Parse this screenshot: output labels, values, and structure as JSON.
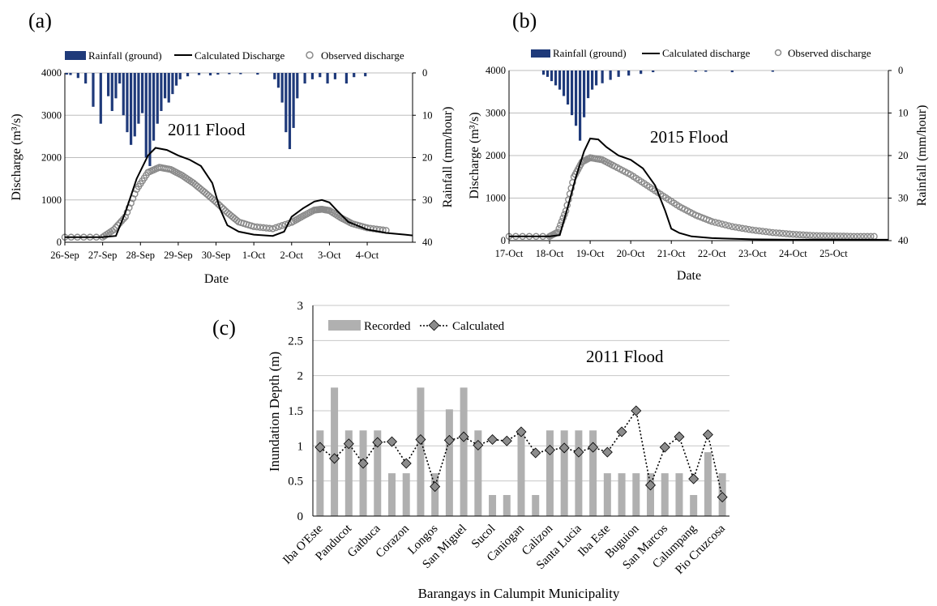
{
  "chart_data": [
    {
      "panel": "(a)",
      "type": "line",
      "annotation": "2011 Flood",
      "xlabel": "Date",
      "ylabel": "Discharge (m³/s)",
      "y2label": "Rainfall (mm/hour)",
      "categories": [
        "26-Sep",
        "27-Sep",
        "28-Sep",
        "29-Sep",
        "30-Sep",
        "1-Oct",
        "2-Oct",
        "3-Oct",
        "4-Oct"
      ],
      "xlim": [
        0,
        9.2
      ],
      "ylim": [
        0,
        4000
      ],
      "y2lim": [
        0,
        40
      ],
      "y2_inverted": true,
      "yticks": [
        "0",
        "1000",
        "2000",
        "3000",
        "4000"
      ],
      "y2ticks": [
        "0",
        "10",
        "20",
        "30",
        "40"
      ],
      "grid": true,
      "legend_position": "top",
      "legend": [
        "Rainfall (ground)",
        "Calculated Discharge",
        "Observed discharge"
      ],
      "colors": {
        "rainfall": "#1f3a7a",
        "calculated": "#000000",
        "observed": "#8a8a8a"
      },
      "series": [
        {
          "name": "Rainfall (ground)",
          "type": "bar",
          "axis": "right",
          "x": [
            0.05,
            0.15,
            0.35,
            0.55,
            0.75,
            0.95,
            1.15,
            1.25,
            1.35,
            1.45,
            1.55,
            1.65,
            1.75,
            1.85,
            1.95,
            2.05,
            2.15,
            2.25,
            2.35,
            2.45,
            2.55,
            2.65,
            2.75,
            2.85,
            2.95,
            3.05,
            3.25,
            3.55,
            3.85,
            4.05,
            4.35,
            4.65,
            5.1,
            5.55,
            5.65,
            5.75,
            5.85,
            5.95,
            6.05,
            6.15,
            6.35,
            6.55,
            6.75,
            6.95,
            7.15,
            7.45,
            7.65,
            7.95
          ],
          "values": [
            0.4,
            0.5,
            1.2,
            2.5,
            8.0,
            12.0,
            5.5,
            9.0,
            6.0,
            2.5,
            10.0,
            14.0,
            17.0,
            15.0,
            12.0,
            9.5,
            20.0,
            22.0,
            16.0,
            12.0,
            9.0,
            6.0,
            7.0,
            5.0,
            3.0,
            1.5,
            0.8,
            0.5,
            0.6,
            0.4,
            0.3,
            0.3,
            0.4,
            1.5,
            3.5,
            7.0,
            14.0,
            18.0,
            13.0,
            6.0,
            2.5,
            1.5,
            1.0,
            2.5,
            1.5,
            2.5,
            1.0,
            0.8
          ]
        },
        {
          "name": "Calculated Discharge",
          "type": "line",
          "axis": "left",
          "x": [
            0,
            1.0,
            1.35,
            1.6,
            1.9,
            2.2,
            2.4,
            2.7,
            3.0,
            3.3,
            3.6,
            3.9,
            4.1,
            4.3,
            4.6,
            5.0,
            5.5,
            5.8,
            6.0,
            6.3,
            6.6,
            6.8,
            7.0,
            7.2,
            7.5,
            8.0,
            8.5,
            9.0,
            9.2
          ],
          "values": [
            120,
            120,
            150,
            700,
            1500,
            2050,
            2230,
            2180,
            2050,
            1950,
            1800,
            1400,
            800,
            400,
            250,
            180,
            150,
            250,
            600,
            800,
            960,
            1000,
            940,
            750,
            480,
            300,
            220,
            180,
            160
          ]
        },
        {
          "name": "Observed discharge",
          "type": "scatter",
          "axis": "left",
          "x": [
            0,
            1.0,
            1.3,
            1.6,
            1.9,
            2.2,
            2.5,
            2.8,
            3.1,
            3.4,
            3.7,
            4.0,
            4.3,
            4.6,
            5.0,
            5.5,
            6.0,
            6.3,
            6.6,
            6.8,
            7.0,
            7.3,
            7.6,
            8.0,
            8.5
          ],
          "values": [
            120,
            120,
            300,
            600,
            1250,
            1650,
            1770,
            1720,
            1580,
            1400,
            1180,
            950,
            700,
            480,
            370,
            320,
            470,
            620,
            760,
            780,
            750,
            580,
            440,
            340,
            280
          ]
        }
      ]
    },
    {
      "panel": "(b)",
      "type": "line",
      "annotation": "2015 Flood",
      "xlabel": "Date",
      "ylabel": "Discharge (m³/s)",
      "y2label": "Rainfall (mm/hour)",
      "categories": [
        "17-Oct",
        "18-Oct",
        "19-Oct",
        "20-Oct",
        "21-Oct",
        "22-Oct",
        "23-Oct",
        "24-Oct",
        "25-Oct"
      ],
      "xlim": [
        0,
        9.35
      ],
      "ylim": [
        0,
        4000
      ],
      "y2lim": [
        0,
        40
      ],
      "y2_inverted": true,
      "yticks": [
        "0",
        "1000",
        "2000",
        "3000",
        "4000"
      ],
      "y2ticks": [
        "0",
        "10",
        "20",
        "30",
        "40"
      ],
      "grid": true,
      "legend_position": "top",
      "legend": [
        "Rainfall (ground)",
        "Calculated discharge",
        "Observed discharge"
      ],
      "colors": {
        "rainfall": "#1f3a7a",
        "calculated": "#000000",
        "observed": "#8a8a8a"
      },
      "series": [
        {
          "name": "Rainfall (ground)",
          "type": "bar",
          "axis": "right",
          "x": [
            0.85,
            0.95,
            1.05,
            1.15,
            1.25,
            1.35,
            1.45,
            1.55,
            1.65,
            1.75,
            1.85,
            1.95,
            2.05,
            2.15,
            2.3,
            2.5,
            2.7,
            2.95,
            3.25,
            3.55,
            4.6,
            4.85,
            5.5,
            6.5
          ],
          "values": [
            1.0,
            1.5,
            2.5,
            3.5,
            4.5,
            6.0,
            8.0,
            10.5,
            13.0,
            16.5,
            11.0,
            6.5,
            4.5,
            3.5,
            3.0,
            2.2,
            1.5,
            1.2,
            0.8,
            0.4,
            0.3,
            0.3,
            0.4,
            0.3
          ]
        },
        {
          "name": "Calculated discharge",
          "type": "line",
          "axis": "left",
          "x": [
            0,
            1.0,
            1.25,
            1.45,
            1.65,
            1.85,
            2.0,
            2.2,
            2.4,
            2.7,
            3.0,
            3.3,
            3.6,
            3.85,
            4.0,
            4.2,
            4.5,
            5.0,
            6.0,
            7.0,
            8.0,
            9.0,
            9.35
          ],
          "values": [
            100,
            100,
            130,
            800,
            1500,
            2100,
            2400,
            2380,
            2200,
            2000,
            1900,
            1700,
            1300,
            700,
            280,
            180,
            100,
            60,
            30,
            20,
            20,
            20,
            20
          ]
        },
        {
          "name": "Observed discharge",
          "type": "scatter",
          "axis": "left",
          "x": [
            0,
            1.0,
            1.2,
            1.4,
            1.6,
            1.8,
            2.0,
            2.3,
            2.6,
            3.0,
            3.4,
            3.8,
            4.2,
            4.6,
            5.0,
            5.5,
            6.0,
            6.5,
            7.0,
            7.5,
            8.0,
            8.5,
            9.0
          ],
          "values": [
            100,
            100,
            200,
            700,
            1500,
            1850,
            1950,
            1900,
            1750,
            1550,
            1300,
            1050,
            800,
            600,
            450,
            330,
            250,
            190,
            150,
            120,
            110,
            100,
            100
          ]
        }
      ]
    },
    {
      "panel": "(c)",
      "type": "bar",
      "annotation": "2011 Flood",
      "xlabel": "Barangays in Calumpit Municipality",
      "ylabel": "Inundation Depth (m)",
      "ylim": [
        0,
        3
      ],
      "yticks": [
        "0",
        "0.5",
        "1",
        "1.5",
        "2",
        "2.5",
        "3"
      ],
      "grid": true,
      "legend_position": "top-left",
      "legend": [
        "Recorded",
        "Calculated"
      ],
      "colors": {
        "recorded": "#b0b0b0",
        "calculated": "#8c8c8c"
      },
      "tick_labels": [
        "Iba O'Este",
        "Panducot",
        "Gatbuca",
        "Corazon",
        "Longos",
        "San Miguel",
        "Sucol",
        "Caniogan",
        "Calizon",
        "Santa Lucia",
        "Iba Este",
        "Buguion",
        "San Marcos",
        "Calumpang",
        "Pio Cruzcosa"
      ],
      "categories": 29,
      "series": [
        {
          "name": "Recorded",
          "type": "bar",
          "values": [
            1.22,
            1.83,
            1.22,
            1.22,
            1.22,
            0.61,
            0.61,
            1.83,
            0.61,
            1.52,
            1.83,
            1.22,
            0.3,
            0.3,
            1.22,
            0.3,
            1.22,
            1.22,
            1.22,
            1.22,
            0.61,
            0.61,
            0.61,
            0.61,
            0.61,
            0.61,
            0.3,
            0.91,
            0.61
          ]
        },
        {
          "name": "Calculated",
          "type": "line",
          "values": [
            0.98,
            0.82,
            1.03,
            0.75,
            1.05,
            1.06,
            0.75,
            1.09,
            0.42,
            1.08,
            1.13,
            1.01,
            1.09,
            1.07,
            1.2,
            0.9,
            0.94,
            0.97,
            0.91,
            0.98,
            0.91,
            1.2,
            1.5,
            0.44,
            0.98,
            1.13,
            0.53,
            1.16,
            0.27
          ]
        }
      ]
    }
  ]
}
